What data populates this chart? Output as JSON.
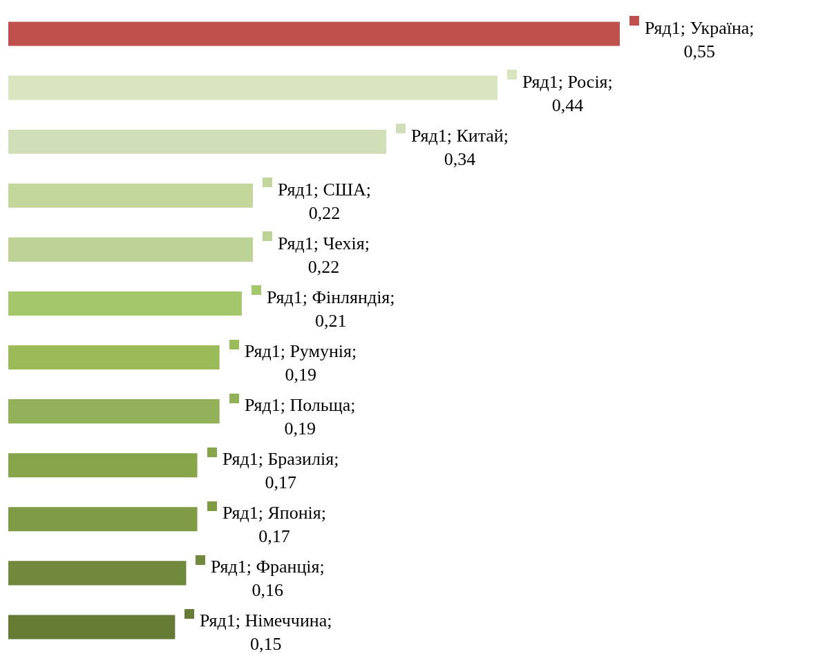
{
  "chart_data": {
    "type": "bar",
    "orientation": "horizontal",
    "categories": [
      null,
      null,
      null,
      null,
      null,
      null,
      null,
      null,
      null,
      null,
      null,
      null
    ],
    "series": [
      {
        "values": [
          0.55,
          0.44,
          0.34,
          0.22,
          0.22,
          0.21,
          0.19,
          0.19,
          0.17,
          0.17,
          0.16,
          0.15
        ],
        "colors": [
          "#c0504d",
          "#d7e4bd",
          "#d1dfb9",
          "#c3d69b",
          "#bcd297",
          "#a6c66c",
          "#9bbb59",
          "#93b158",
          "#86a44a",
          "#7f9c45",
          "#71893d",
          "#657b36"
        ],
        "value_labels": [
          "Ряд1; Україна; 0,55",
          "Ряд1; Росія; 0,44",
          "Ряд1; Китай; 0,34",
          "Ряд1; США; 0,22",
          "Ряд1; Чехія; 0,22",
          "Ряд1; Фінляндія; 0,21",
          "Ряд1; Румунія; 0,19",
          "Ряд1; Польща; 0,19",
          "Ряд1; Бразилія; 0,17",
          "Ряд1; Японія; 0,17",
          "Ряд1; Франція; 0,16",
          "Ряд1; Німеччина; 0,15"
        ]
      }
    ],
    "grid": false,
    "legend": false
  }
}
